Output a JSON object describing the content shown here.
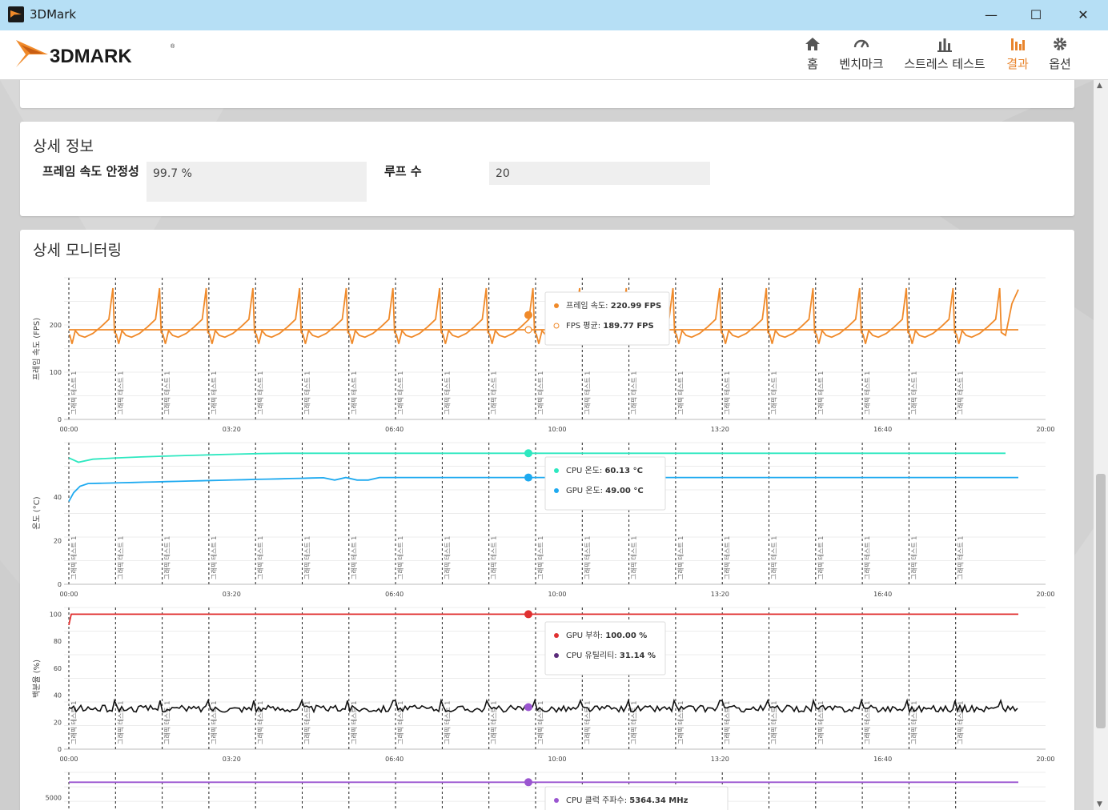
{
  "window": {
    "title": "3DMark",
    "minimize": "—",
    "maximize": "☐",
    "close": "✕"
  },
  "logo": {
    "text": "3DMARK",
    "registered": "®"
  },
  "nav": [
    {
      "label": "홈",
      "icon": "home-icon"
    },
    {
      "label": "벤치마크",
      "icon": "speedometer-icon"
    },
    {
      "label": "스트레스 테스트",
      "icon": "bar-chart-icon"
    },
    {
      "label": "결과",
      "icon": "results-icon",
      "active": true
    },
    {
      "label": "옵션",
      "icon": "gear-icon"
    }
  ],
  "details": {
    "title": "상세 정보",
    "frame_stability_label": "프레임 속도 안정성",
    "frame_stability_value": "99.7 %",
    "loops_label": "루프 수",
    "loops_value": "20"
  },
  "monitoring": {
    "title": "상세 모니터링"
  },
  "colors": {
    "accent": "#e8832b",
    "fps": "#f08a2a",
    "cpu_temp": "#2de8c0",
    "gpu_temp": "#1eaaf0",
    "gpu_load": "#e03030",
    "cpu_util": "#111111",
    "cpu_clock": "#9a55d0"
  },
  "chart_data": [
    {
      "type": "line",
      "ylabel": "프레임 속도 (FPS)",
      "x_ticks": [
        "00:00",
        "03:20",
        "06:40",
        "10:00",
        "13:20",
        "16:40",
        "20:00"
      ],
      "y_ticks": [
        0,
        100,
        200
      ],
      "ylim": [
        0,
        300
      ],
      "loop_marker_label": "그래픽 테스트 1",
      "series": [
        {
          "name": "프레임 속도",
          "shape": "sawtooth",
          "base": 178,
          "low": 160,
          "peak": 278,
          "end": 275
        },
        {
          "name": "FPS 평균",
          "shape": "flat",
          "base": 189.77
        }
      ],
      "tooltip": [
        {
          "label": "프레임 속도:",
          "value": "220.99 FPS"
        },
        {
          "label": "FPS 평균:",
          "value": "189.77 FPS"
        }
      ]
    },
    {
      "type": "line",
      "ylabel": "온도 (°C)",
      "x_ticks": [
        "00:00",
        "03:20",
        "06:40",
        "10:00",
        "13:20",
        "16:40",
        "20:00"
      ],
      "y_ticks": [
        0,
        20,
        40
      ],
      "ylim": [
        0,
        65
      ],
      "loop_marker_label": "그래픽 테스트 1",
      "series": [
        {
          "name": "CPU 온도",
          "shape": "warmup",
          "start": 58,
          "dip": 56,
          "base": 60.13
        },
        {
          "name": "GPU 온도",
          "shape": "warmup",
          "start": 38,
          "base": 49.0
        }
      ],
      "tooltip": [
        {
          "label": "CPU 온도:",
          "value": "60.13 °C"
        },
        {
          "label": "GPU 온도:",
          "value": "49.00 °C"
        }
      ]
    },
    {
      "type": "line",
      "ylabel": "백분율 (%)",
      "x_ticks": [
        "00:00",
        "03:20",
        "06:40",
        "10:00",
        "13:20",
        "16:40",
        "20:00"
      ],
      "y_ticks": [
        0,
        20,
        40,
        60,
        80,
        100
      ],
      "ylim": [
        0,
        105
      ],
      "loop_marker_label": "그래픽 테스트 1",
      "series": [
        {
          "name": "GPU 부하",
          "shape": "flat",
          "start": 92,
          "base": 100.0
        },
        {
          "name": "CPU 유틸리티",
          "shape": "noisy",
          "base": 30,
          "amp": 2.5,
          "spike": 36
        }
      ],
      "tooltip": [
        {
          "label": "GPU 부하:",
          "value": "100.00 %"
        },
        {
          "label": "CPU 유틸리티:",
          "value": "31.14 %"
        }
      ]
    },
    {
      "type": "line",
      "y_ticks": [
        5000
      ],
      "ylim": [
        4700,
        5600
      ],
      "series": [
        {
          "name": "CPU 클럭 주파수",
          "shape": "flat",
          "base": 5364.34
        }
      ],
      "tooltip": [
        {
          "label": "CPU 클럭 주파수:",
          "value": "5364.34 MHz"
        }
      ]
    }
  ]
}
